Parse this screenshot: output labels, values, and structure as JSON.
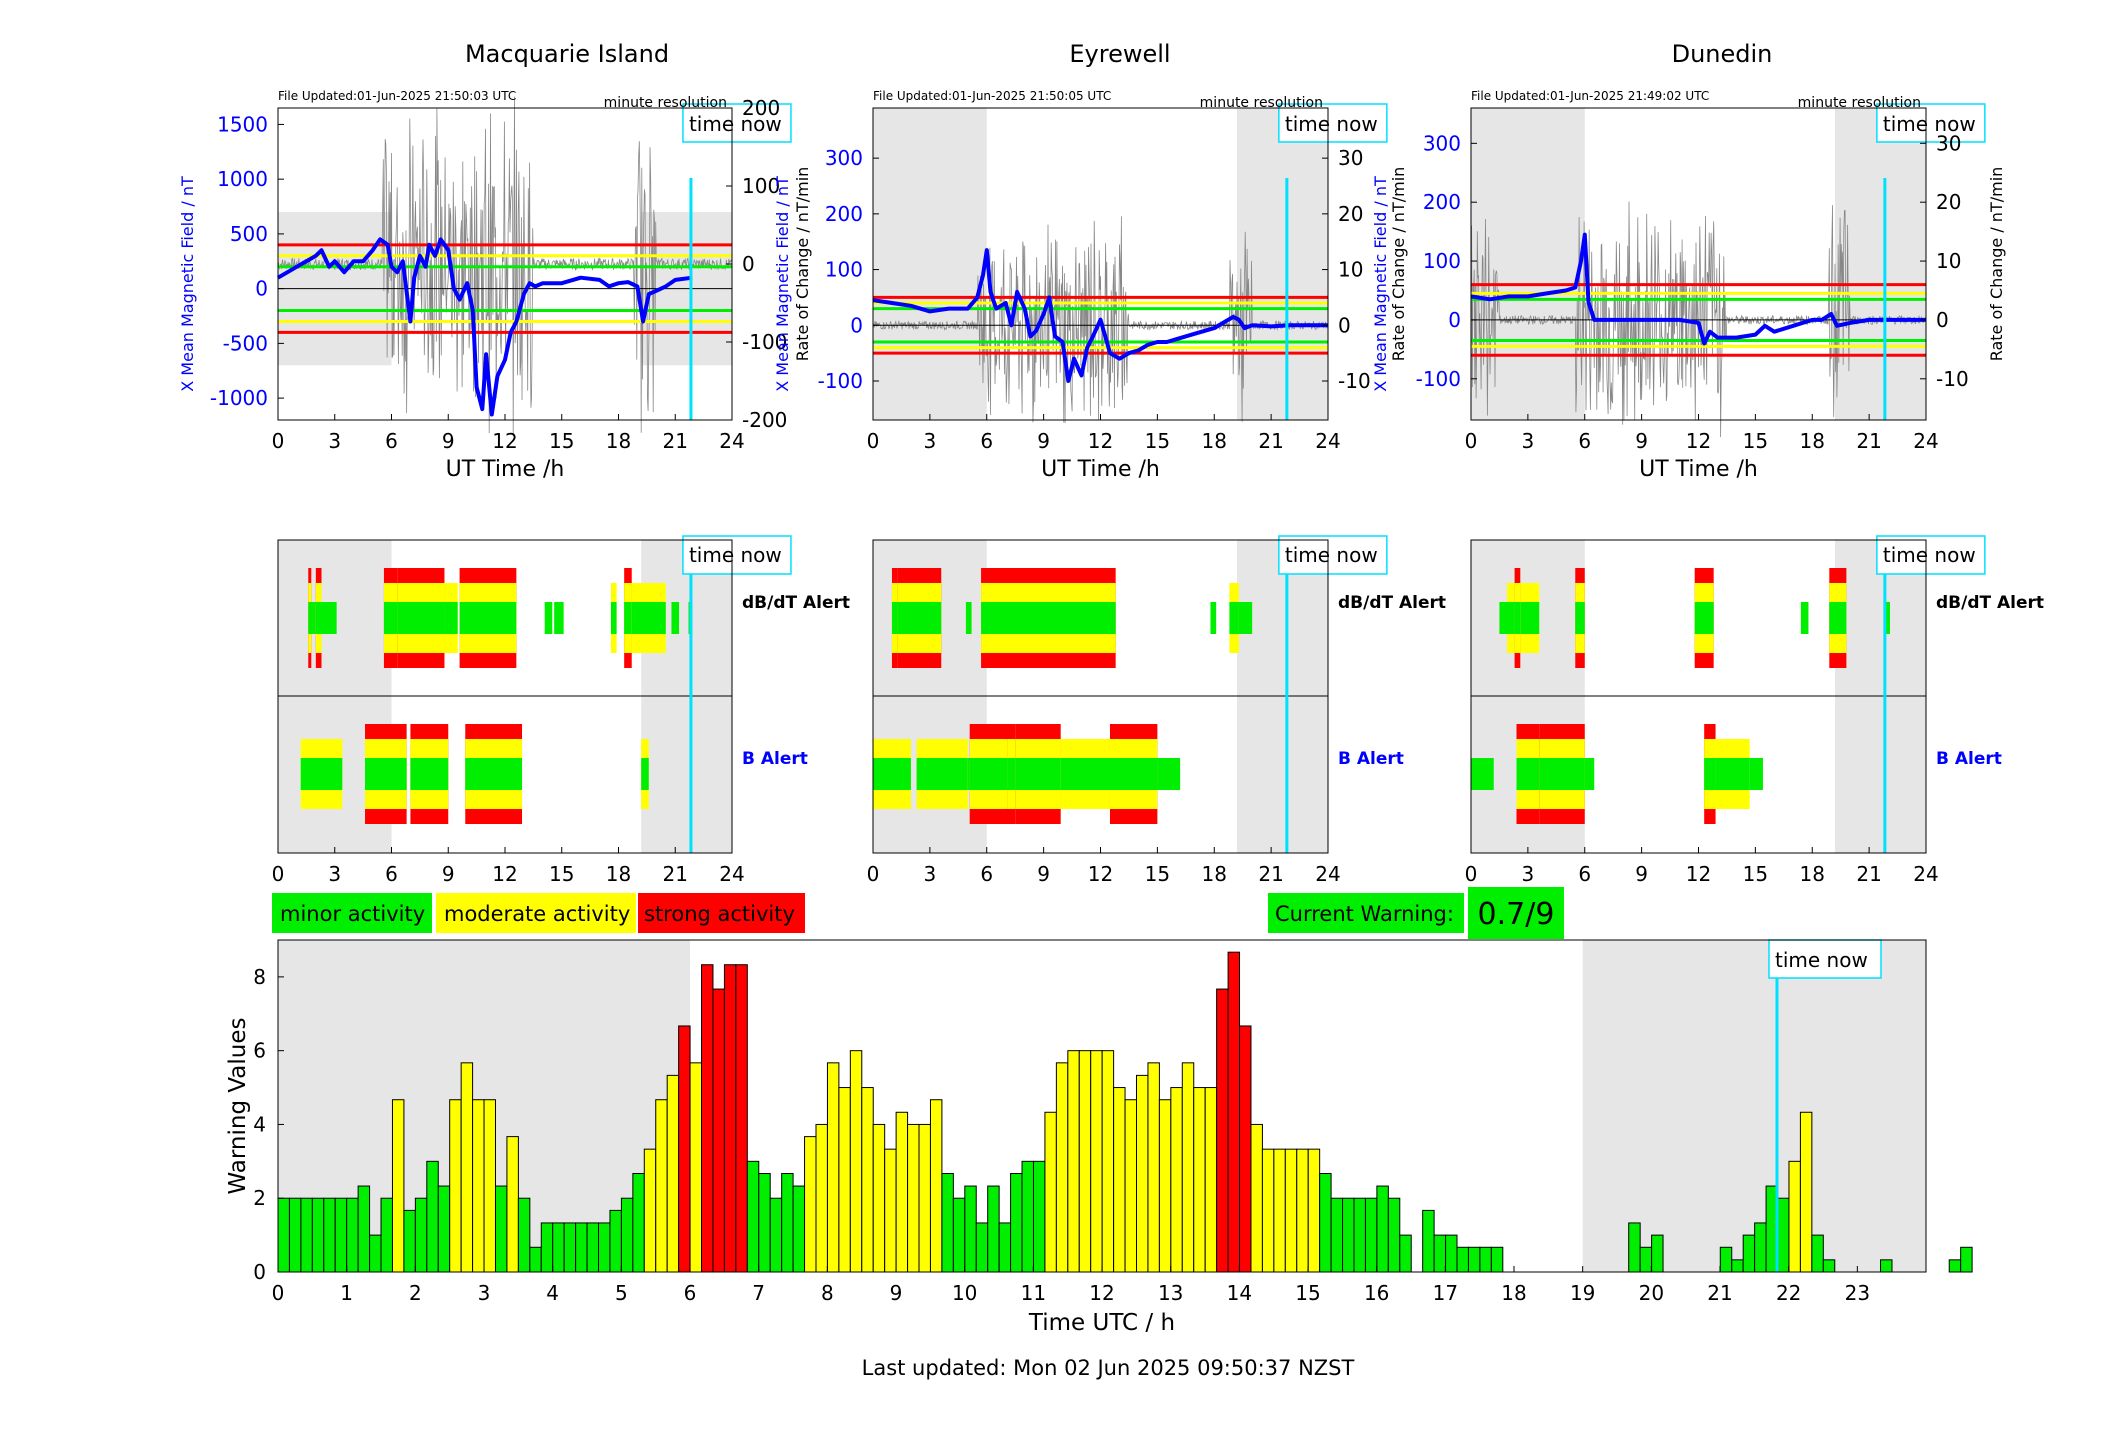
{
  "stations": [
    {
      "name": "Macquarie Island",
      "file_updated": "File Updated:01-Jun-2025 21:50:03 UTC",
      "resolution": "minute resolution",
      "left_axis_label": "X Mean Magnetic Field / nT",
      "right_axis_label": "Rate of Change / nT/min",
      "xlabel": "UT Time /h",
      "ylim_left": [
        -1200,
        1650
      ],
      "yticks_left": [
        -1000,
        -500,
        0,
        500,
        1000,
        1500
      ],
      "ylim_right": [
        -200,
        200
      ],
      "yticks_right": [
        -200,
        -100,
        0,
        100,
        200
      ],
      "threshold_lines": {
        "red": [
          400,
          -400
        ],
        "yellow": [
          300,
          -300
        ],
        "green": [
          200,
          -200
        ]
      },
      "night_shading_h": [
        [
          0,
          6
        ],
        [
          19.2,
          24
        ]
      ],
      "night_band_left": [
        -700,
        700
      ],
      "b_field_trace": [
        [
          0,
          100
        ],
        [
          0.5,
          150
        ],
        [
          1,
          200
        ],
        [
          1.5,
          250
        ],
        [
          2,
          300
        ],
        [
          2.3,
          350
        ],
        [
          2.7,
          200
        ],
        [
          3,
          250
        ],
        [
          3.5,
          150
        ],
        [
          4,
          250
        ],
        [
          4.5,
          250
        ],
        [
          5,
          350
        ],
        [
          5.4,
          450
        ],
        [
          5.8,
          400
        ],
        [
          6,
          200
        ],
        [
          6.3,
          150
        ],
        [
          6.6,
          250
        ],
        [
          7,
          -300
        ],
        [
          7.2,
          100
        ],
        [
          7.5,
          300
        ],
        [
          7.8,
          200
        ],
        [
          8,
          400
        ],
        [
          8.3,
          300
        ],
        [
          8.6,
          450
        ],
        [
          9,
          350
        ],
        [
          9.3,
          0
        ],
        [
          9.6,
          -100
        ],
        [
          10,
          50
        ],
        [
          10.3,
          -200
        ],
        [
          10.5,
          -900
        ],
        [
          10.8,
          -1100
        ],
        [
          11,
          -600
        ],
        [
          11.3,
          -1150
        ],
        [
          11.6,
          -800
        ],
        [
          12,
          -650
        ],
        [
          12.3,
          -400
        ],
        [
          12.6,
          -300
        ],
        [
          13,
          -50
        ],
        [
          13.3,
          50
        ],
        [
          13.6,
          20
        ],
        [
          14,
          50
        ],
        [
          15,
          50
        ],
        [
          16,
          100
        ],
        [
          17,
          80
        ],
        [
          17.5,
          20
        ],
        [
          18,
          50
        ],
        [
          18.5,
          60
        ],
        [
          19,
          20
        ],
        [
          19.3,
          -300
        ],
        [
          19.6,
          -50
        ],
        [
          20,
          -20
        ],
        [
          20.5,
          20
        ],
        [
          21,
          80
        ],
        [
          21.9,
          100
        ]
      ],
      "rate_band_max": 150
    },
    {
      "name": "Eyrewell",
      "file_updated": "File Updated:01-Jun-2025 21:50:05 UTC",
      "resolution": "minute resolution",
      "left_axis_label": "X Mean Magnetic Field / nT",
      "right_axis_label": "Rate of Change / nT/min",
      "xlabel": "UT Time /h",
      "ylim_left": [
        -170,
        390
      ],
      "yticks_left": [
        -100,
        0,
        100,
        200,
        300
      ],
      "ylim_right": [
        -17,
        39
      ],
      "yticks_right": [
        -10,
        0,
        10,
        20,
        30
      ],
      "threshold_lines": {
        "red": [
          50,
          -50
        ],
        "yellow": [
          40,
          -40
        ],
        "green": [
          30,
          -30
        ]
      },
      "night_shading_h": [
        [
          0,
          6
        ],
        [
          19.2,
          24
        ]
      ],
      "night_band_left": [
        -170,
        390
      ],
      "b_field_trace": [
        [
          0,
          45
        ],
        [
          1,
          40
        ],
        [
          2,
          35
        ],
        [
          3,
          25
        ],
        [
          4,
          30
        ],
        [
          5,
          30
        ],
        [
          5.5,
          50
        ],
        [
          5.8,
          90
        ],
        [
          6,
          135
        ],
        [
          6.2,
          60
        ],
        [
          6.5,
          30
        ],
        [
          7,
          40
        ],
        [
          7.3,
          0
        ],
        [
          7.6,
          60
        ],
        [
          8,
          30
        ],
        [
          8.3,
          -20
        ],
        [
          8.6,
          -10
        ],
        [
          9,
          20
        ],
        [
          9.3,
          50
        ],
        [
          9.6,
          -20
        ],
        [
          10,
          -30
        ],
        [
          10.3,
          -100
        ],
        [
          10.6,
          -60
        ],
        [
          11,
          -90
        ],
        [
          11.3,
          -40
        ],
        [
          11.6,
          -20
        ],
        [
          12,
          10
        ],
        [
          12.5,
          -50
        ],
        [
          13,
          -60
        ],
        [
          13.5,
          -50
        ],
        [
          14,
          -45
        ],
        [
          14.5,
          -35
        ],
        [
          15,
          -30
        ],
        [
          15.5,
          -30
        ],
        [
          16,
          -25
        ],
        [
          17,
          -15
        ],
        [
          18,
          -5
        ],
        [
          18.5,
          5
        ],
        [
          19,
          15
        ],
        [
          19.3,
          10
        ],
        [
          19.6,
          -5
        ],
        [
          20,
          0
        ],
        [
          21,
          -2
        ],
        [
          22,
          0
        ],
        [
          24,
          0
        ]
      ],
      "rate_band_max": 15
    },
    {
      "name": "Dunedin",
      "file_updated": "File Updated:01-Jun-2025 21:49:02 UTC",
      "resolution": "minute resolution",
      "left_axis_label": "X Mean Magnetic Field / nT",
      "right_axis_label": "Rate of Change / nT/min",
      "xlabel": "UT Time /h",
      "ylim_left": [
        -170,
        360
      ],
      "yticks_left": [
        -100,
        0,
        100,
        200,
        300
      ],
      "ylim_right": [
        -17,
        36
      ],
      "yticks_right": [
        -10,
        0,
        10,
        20,
        30
      ],
      "threshold_lines": {
        "red": [
          60,
          -60
        ],
        "yellow": [
          45,
          -45
        ],
        "green": [
          35,
          -35
        ]
      },
      "night_shading_h": [
        [
          0,
          6
        ],
        [
          19.2,
          24
        ]
      ],
      "night_band_left": [
        -170,
        360
      ],
      "b_field_trace": [
        [
          0,
          40
        ],
        [
          1,
          35
        ],
        [
          2,
          40
        ],
        [
          3,
          40
        ],
        [
          4,
          45
        ],
        [
          5,
          50
        ],
        [
          5.5,
          55
        ],
        [
          5.8,
          100
        ],
        [
          6,
          145
        ],
        [
          6.2,
          30
        ],
        [
          6.5,
          0
        ],
        [
          7,
          0
        ],
        [
          8,
          0
        ],
        [
          9,
          0
        ],
        [
          10,
          0
        ],
        [
          11,
          0
        ],
        [
          12,
          -5
        ],
        [
          12.3,
          -40
        ],
        [
          12.6,
          -20
        ],
        [
          13,
          -30
        ],
        [
          14,
          -30
        ],
        [
          15,
          -25
        ],
        [
          15.5,
          -10
        ],
        [
          16,
          -20
        ],
        [
          17,
          -10
        ],
        [
          18,
          0
        ],
        [
          18.5,
          0
        ],
        [
          19,
          10
        ],
        [
          19.3,
          -10
        ],
        [
          20,
          -5
        ],
        [
          21,
          0
        ],
        [
          22,
          0
        ],
        [
          24,
          0
        ]
      ],
      "rate_band_max": 15
    }
  ],
  "time_now_label": "time now",
  "time_now_h": 21.83,
  "alerts": {
    "dbdt_label": "dB/dT Alert",
    "b_label": "B Alert",
    "dbdt": [
      [
        [
          1.6,
          1.7,
          3
        ],
        [
          1.7,
          2.0,
          1
        ],
        [
          2.0,
          2.3,
          3
        ],
        [
          2.3,
          3.1,
          1
        ],
        [
          5.6,
          6.3,
          3
        ],
        [
          6.3,
          8.8,
          3
        ],
        [
          8.8,
          9.5,
          2
        ],
        [
          9.6,
          12.6,
          3
        ],
        [
          14.1,
          14.5,
          1
        ],
        [
          14.6,
          15.1,
          1
        ],
        [
          17.6,
          17.9,
          2
        ],
        [
          18.3,
          18.7,
          3
        ],
        [
          18.7,
          20.5,
          2
        ],
        [
          20.8,
          21.2,
          1
        ],
        [
          21.7,
          21.9,
          1
        ]
      ],
      [
        [
          1.0,
          1.3,
          3
        ],
        [
          1.3,
          3.6,
          3
        ],
        [
          4.9,
          5.2,
          1
        ],
        [
          5.7,
          12.8,
          3
        ],
        [
          17.8,
          18.1,
          1
        ],
        [
          18.8,
          19.3,
          2
        ],
        [
          19.3,
          20.0,
          1
        ]
      ],
      [
        [
          1.5,
          1.9,
          1
        ],
        [
          1.9,
          2.3,
          2
        ],
        [
          2.3,
          2.6,
          3
        ],
        [
          2.6,
          3.6,
          2
        ],
        [
          5.5,
          6.0,
          3
        ],
        [
          11.8,
          12.8,
          3
        ],
        [
          17.4,
          17.8,
          1
        ],
        [
          18.9,
          19.8,
          3
        ],
        [
          21.8,
          22.1,
          1
        ]
      ]
    ],
    "b": [
      [
        [
          1.2,
          3.4,
          2
        ],
        [
          4.6,
          6.8,
          3
        ],
        [
          7.0,
          9.0,
          3
        ],
        [
          9.9,
          12.9,
          3
        ],
        [
          19.2,
          19.6,
          2
        ]
      ],
      [
        [
          0,
          2.0,
          2
        ],
        [
          2.3,
          5.0,
          2
        ],
        [
          5.0,
          6.0,
          1
        ],
        [
          5.1,
          7.2,
          3
        ],
        [
          7.1,
          7.5,
          3
        ],
        [
          7.5,
          9.9,
          3
        ],
        [
          9.9,
          12.5,
          2
        ],
        [
          12.5,
          15.0,
          3
        ],
        [
          15.0,
          16.2,
          1
        ]
      ],
      [
        [
          0,
          1.2,
          1
        ],
        [
          2.4,
          3.6,
          3
        ],
        [
          3.6,
          6.0,
          3
        ],
        [
          6.0,
          6.5,
          1
        ],
        [
          12.3,
          12.9,
          3
        ],
        [
          12.9,
          14.7,
          2
        ],
        [
          14.7,
          15.4,
          1
        ]
      ]
    ]
  },
  "legend": {
    "minor": "minor activity",
    "moderate": "moderate activity",
    "strong": "strong activity"
  },
  "current_warning": {
    "label": "Current Warning:",
    "value": "0.7/9"
  },
  "colors": {
    "minor": "#00ee00",
    "moderate": "#ffff00",
    "strong": "#ff0000",
    "b_field_line": "#0000ff",
    "time_now": "#00e0ff",
    "night": "#e6e6e6"
  },
  "chart_data": {
    "type": "bar",
    "xlabel": "Time UTC / h",
    "ylabel": "Warning Values",
    "xlim": [
      0,
      24
    ],
    "xticks": [
      0,
      1,
      2,
      3,
      4,
      5,
      6,
      7,
      8,
      9,
      10,
      11,
      12,
      13,
      14,
      15,
      16,
      17,
      18,
      19,
      20,
      21,
      22,
      23
    ],
    "ylim": [
      0,
      9
    ],
    "yticks": [
      0,
      2,
      4,
      6,
      8
    ],
    "bin_width_h": 0.1667,
    "values": [
      2,
      2,
      2,
      2,
      2,
      2,
      2,
      2.33,
      1,
      2,
      4.67,
      1.67,
      2,
      3,
      2.33,
      4.67,
      5.67,
      4.67,
      4.67,
      2.33,
      3.67,
      2,
      0.67,
      1.33,
      1.33,
      1.33,
      1.33,
      1.33,
      1.33,
      1.67,
      2,
      2.67,
      3.33,
      4.67,
      5.33,
      6.67,
      5.67,
      8.33,
      7.67,
      8.33,
      8.33,
      3,
      2.67,
      2,
      2.67,
      2.33,
      3.67,
      4,
      5.67,
      5,
      6,
      5,
      4,
      3.33,
      4.33,
      4,
      4,
      4.67,
      2.67,
      2,
      2.33,
      1.33,
      2.33,
      1.33,
      2.67,
      3,
      3,
      4.33,
      5.67,
      6,
      6,
      6,
      6,
      5,
      4.67,
      5.33,
      5.67,
      4.67,
      5,
      5.67,
      5,
      5,
      7.67,
      8.67,
      6.67,
      4,
      3.33,
      3.33,
      3.33,
      3.33,
      3.33,
      2.67,
      2,
      2,
      2,
      2,
      2.33,
      2,
      1,
      0,
      1.67,
      1,
      1,
      0.67,
      0.67,
      0.67,
      0.67,
      0,
      0,
      0,
      0,
      0,
      0,
      0,
      0,
      0,
      0,
      0,
      1.33,
      0.67,
      1,
      0,
      0,
      0,
      0,
      0,
      0.67,
      0.33,
      1,
      1.33,
      2.33,
      2,
      3,
      4.33,
      1,
      0.33,
      0,
      0,
      0,
      0,
      0.33,
      0,
      0,
      0,
      0,
      0,
      0.33,
      0.67,
      0,
      0,
      0,
      0,
      0,
      0,
      0,
      0,
      0,
      0,
      0,
      0,
      0,
      0
    ],
    "bar_colors": [
      "g",
      "g",
      "g",
      "g",
      "g",
      "g",
      "g",
      "g",
      "g",
      "g",
      "y",
      "g",
      "g",
      "g",
      "g",
      "y",
      "y",
      "y",
      "y",
      "g",
      "y",
      "g",
      "g",
      "g",
      "g",
      "g",
      "g",
      "g",
      "g",
      "g",
      "g",
      "g",
      "y",
      "y",
      "y",
      "r",
      "y",
      "r",
      "r",
      "r",
      "r",
      "g",
      "g",
      "g",
      "g",
      "g",
      "y",
      "y",
      "y",
      "y",
      "y",
      "y",
      "y",
      "y",
      "y",
      "y",
      "y",
      "y",
      "g",
      "g",
      "g",
      "g",
      "g",
      "g",
      "g",
      "g",
      "g",
      "y",
      "y",
      "y",
      "y",
      "y",
      "y",
      "y",
      "y",
      "y",
      "y",
      "y",
      "y",
      "y",
      "y",
      "y",
      "r",
      "r",
      "r",
      "y",
      "y",
      "y",
      "y",
      "y",
      "y",
      "g",
      "g",
      "g",
      "g",
      "g",
      "g",
      "g",
      "g",
      "g",
      "g",
      "g",
      "g",
      "g",
      "g",
      "g",
      "g",
      "g",
      "g",
      "g",
      "g",
      "g",
      "g",
      "g",
      "g",
      "g",
      "g",
      "g",
      "g",
      "g",
      "g",
      "g",
      "g",
      "g",
      "g",
      "g",
      "g",
      "g",
      "g",
      "g",
      "g",
      "g",
      "y",
      "y",
      "g",
      "g",
      "g",
      "g",
      "g",
      "g",
      "g",
      "g",
      "g",
      "g",
      "g",
      "g",
      "g",
      "g",
      "g",
      "g",
      "g",
      "g",
      "g",
      "g",
      "g",
      "g",
      "g",
      "g",
      "g",
      "g",
      "g",
      "g",
      "g",
      "g",
      "g",
      "g",
      "g"
    ],
    "night_shading_h": [
      [
        0,
        6
      ],
      [
        19,
        24
      ]
    ],
    "time_now_h": 21.83
  },
  "footer": "Last updated: Mon 02 Jun 2025 09:50:37 NZST"
}
